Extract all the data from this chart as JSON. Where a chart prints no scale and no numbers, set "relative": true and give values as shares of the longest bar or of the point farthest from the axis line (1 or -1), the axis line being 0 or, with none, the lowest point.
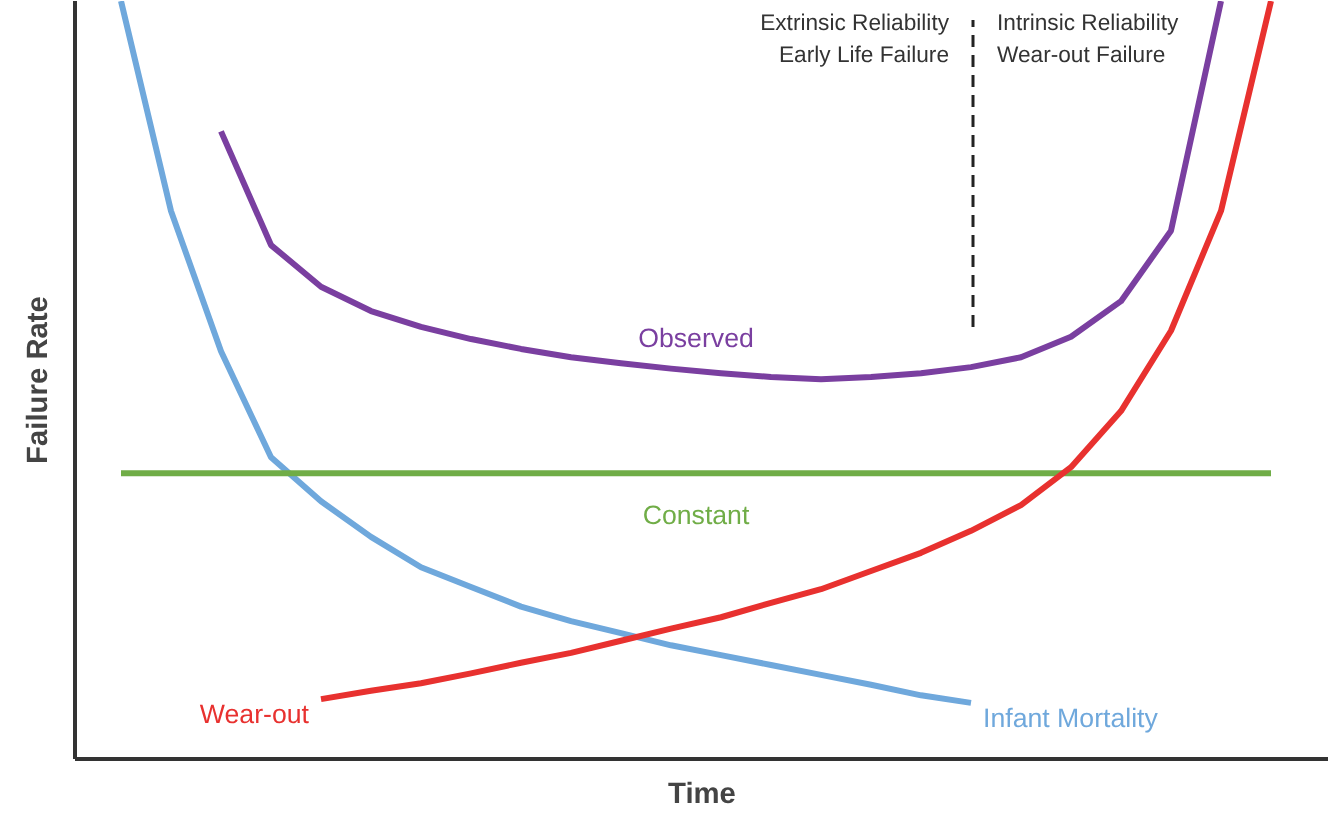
{
  "chart_data": {
    "type": "line",
    "relative": true,
    "xlabel": "Time",
    "ylabel": "Failure Rate",
    "categories": [
      null,
      null,
      null,
      null,
      null,
      null,
      null,
      null,
      null,
      null,
      null,
      null,
      null,
      null,
      null,
      null,
      null,
      null,
      null,
      null,
      null,
      null,
      null,
      null
    ],
    "series": [
      {
        "name": "Infant Mortality",
        "color": "#6fa8dc",
        "values": [
          1.0,
          0.723,
          0.538,
          0.398,
          0.34,
          0.293,
          0.253,
          0.227,
          0.201,
          0.182,
          0.166,
          0.15,
          0.137,
          0.124,
          0.111,
          0.098,
          0.084,
          0.074,
          null,
          null,
          null,
          null,
          null,
          null
        ]
      },
      {
        "name": "Observed",
        "color": "#7a3fa0",
        "values": [
          null,
          null,
          0.828,
          0.678,
          0.623,
          0.591,
          0.57,
          0.554,
          0.541,
          0.53,
          0.522,
          0.515,
          0.509,
          0.504,
          0.501,
          0.504,
          0.509,
          0.517,
          0.53,
          0.557,
          0.604,
          0.697,
          1.0,
          null
        ]
      },
      {
        "name": "Constant",
        "color": "#70ad47",
        "values": [
          0.377,
          0.377,
          0.377,
          0.377,
          0.377,
          0.377,
          0.377,
          0.377,
          0.377,
          0.377,
          0.377,
          0.377,
          0.377,
          0.377,
          0.377,
          0.377,
          0.377,
          0.377,
          0.377,
          0.377,
          0.377,
          0.377,
          0.377,
          0.377
        ]
      },
      {
        "name": "Wear-out",
        "color": "#e8312f",
        "values": [
          null,
          null,
          null,
          null,
          0.079,
          0.09,
          0.1,
          0.113,
          0.127,
          0.14,
          0.156,
          0.172,
          0.187,
          0.206,
          0.224,
          0.248,
          0.272,
          0.301,
          0.335,
          0.385,
          0.459,
          0.565,
          0.723,
          1.0
        ]
      }
    ],
    "annotations": [
      "Extrinsic Reliability\nEarly Life Failure",
      "Intrinsic Reliability\nWear-out Failure"
    ],
    "grid": false,
    "line_style": "solid",
    "marker": "none"
  }
}
